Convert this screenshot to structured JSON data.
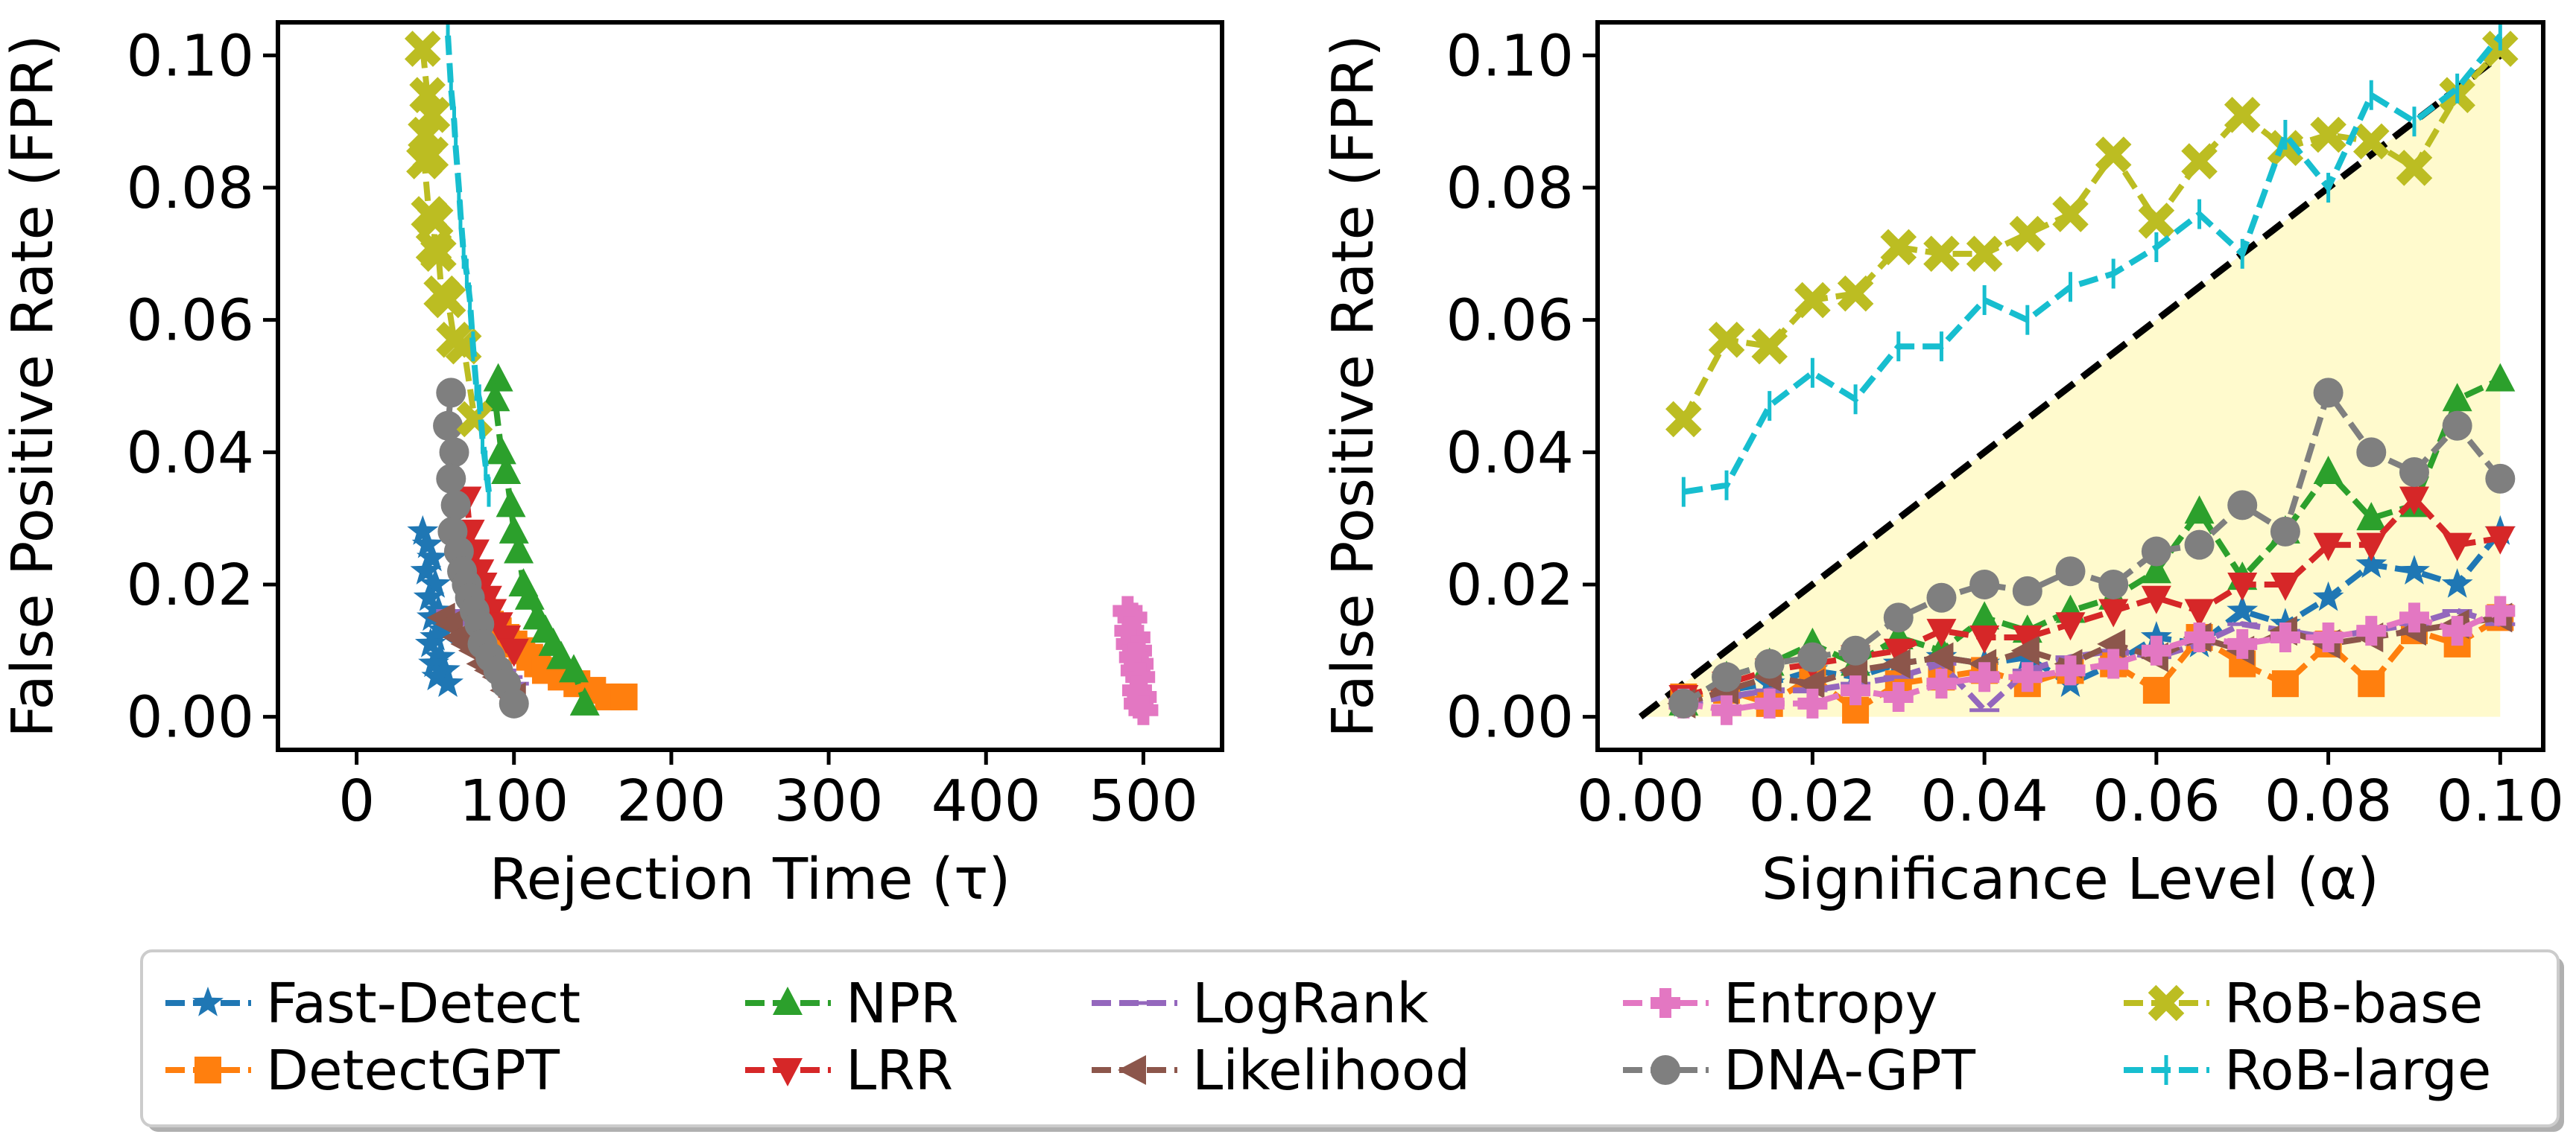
{
  "chart_data": [
    {
      "type": "line",
      "xlabel": "Rejection Time (τ)",
      "ylabel": "False Positive Rate (FPR)",
      "xlim": [
        -50,
        550
      ],
      "ylim": [
        -0.005,
        0.105
      ],
      "xticks": [
        0,
        100,
        200,
        300,
        400,
        500
      ],
      "yticks": [
        0.0,
        0.02,
        0.04,
        0.06,
        0.08,
        0.1
      ],
      "xtick_labels": [
        "0",
        "100",
        "200",
        "300",
        "400",
        "500"
      ],
      "ytick_labels": [
        "0.00",
        "0.02",
        "0.04",
        "0.06",
        "0.08",
        "0.10"
      ],
      "grid": false,
      "series": [
        {
          "name": "Fast-Detect",
          "x": [
            42,
            45,
            48,
            44,
            50,
            46,
            52,
            48,
            55,
            50,
            47,
            53,
            49,
            56,
            51,
            58
          ],
          "y": [
            0.028,
            0.026,
            0.024,
            0.022,
            0.02,
            0.018,
            0.016,
            0.015,
            0.013,
            0.012,
            0.011,
            0.009,
            0.008,
            0.007,
            0.006,
            0.005
          ]
        },
        {
          "name": "DetectGPT",
          "x": [
            80,
            85,
            90,
            95,
            100,
            105,
            110,
            115,
            120,
            130,
            140,
            150,
            160,
            170
          ],
          "y": [
            0.016,
            0.014,
            0.013,
            0.012,
            0.011,
            0.01,
            0.009,
            0.008,
            0.007,
            0.006,
            0.005,
            0.004,
            0.003,
            0.003
          ]
        },
        {
          "name": "NPR",
          "x": [
            90,
            88,
            92,
            95,
            98,
            100,
            103,
            106,
            110,
            115,
            120,
            125,
            130,
            138,
            145
          ],
          "y": [
            0.051,
            0.048,
            0.04,
            0.037,
            0.032,
            0.028,
            0.025,
            0.02,
            0.018,
            0.015,
            0.013,
            0.011,
            0.009,
            0.007,
            0.002
          ]
        },
        {
          "name": "LRR",
          "x": [
            70,
            72,
            75,
            78,
            80,
            83,
            86,
            90,
            95,
            100
          ],
          "y": [
            0.033,
            0.028,
            0.025,
            0.022,
            0.02,
            0.018,
            0.016,
            0.014,
            0.012,
            0.01
          ]
        },
        {
          "name": "LogRank",
          "x": [
            60,
            64,
            68,
            72,
            76,
            80,
            84,
            88,
            92,
            96,
            100
          ],
          "y": [
            0.016,
            0.015,
            0.014,
            0.013,
            0.012,
            0.01,
            0.009,
            0.008,
            0.007,
            0.006,
            0.005
          ]
        },
        {
          "name": "Likelihood",
          "x": [
            55,
            60,
            65,
            70,
            75,
            80,
            85,
            90,
            95,
            100
          ],
          "y": [
            0.015,
            0.014,
            0.012,
            0.011,
            0.01,
            0.008,
            0.007,
            0.006,
            0.004,
            0.003
          ]
        },
        {
          "name": "Entropy",
          "x": [
            490,
            493,
            491,
            495,
            492,
            496,
            494,
            497,
            495,
            498,
            496,
            499,
            497,
            500
          ],
          "y": [
            0.016,
            0.015,
            0.013,
            0.012,
            0.011,
            0.01,
            0.009,
            0.008,
            0.007,
            0.006,
            0.004,
            0.003,
            0.002,
            0.001
          ]
        },
        {
          "name": "DNA-GPT",
          "x": [
            60,
            58,
            62,
            60,
            63,
            61,
            65,
            67,
            70,
            72,
            75,
            78,
            80,
            85,
            90,
            95,
            100
          ],
          "y": [
            0.049,
            0.044,
            0.04,
            0.036,
            0.032,
            0.028,
            0.025,
            0.022,
            0.02,
            0.018,
            0.016,
            0.014,
            0.011,
            0.009,
            0.007,
            0.005,
            0.002
          ]
        },
        {
          "name": "RoB-base",
          "x": [
            42,
            45,
            48,
            44,
            47,
            43,
            46,
            50,
            49,
            52,
            54,
            58,
            62,
            68,
            75
          ],
          "y": [
            0.101,
            0.094,
            0.091,
            0.088,
            0.085,
            0.084,
            0.076,
            0.075,
            0.071,
            0.07,
            0.064,
            0.063,
            0.057,
            0.056,
            0.045
          ]
        },
        {
          "name": "RoB-large",
          "x": [
            58,
            60,
            62,
            63,
            65,
            66,
            68,
            70,
            72,
            74,
            76,
            78,
            80,
            82,
            84
          ],
          "y": [
            0.103,
            0.095,
            0.09,
            0.086,
            0.08,
            0.076,
            0.07,
            0.067,
            0.063,
            0.056,
            0.05,
            0.048,
            0.042,
            0.038,
            0.034
          ]
        }
      ]
    },
    {
      "type": "line",
      "xlabel": "Significance Level (α)",
      "ylabel": "False Positive Rate (FPR)",
      "xlim": [
        -0.005,
        0.105
      ],
      "ylim": [
        -0.005,
        0.105
      ],
      "xticks": [
        0.0,
        0.02,
        0.04,
        0.06,
        0.08,
        0.1
      ],
      "yticks": [
        0.0,
        0.02,
        0.04,
        0.06,
        0.08,
        0.1
      ],
      "xtick_labels": [
        "0.00",
        "0.02",
        "0.04",
        "0.06",
        "0.08",
        "0.10"
      ],
      "ytick_labels": [
        "0.00",
        "0.02",
        "0.04",
        "0.06",
        "0.08",
        "0.10"
      ],
      "grid": false,
      "reference_line": {
        "x": [
          0,
          0.1
        ],
        "y": [
          0,
          0.1
        ],
        "style": "dashed",
        "color": "#000000"
      },
      "shaded_region": {
        "color": "#fffacd",
        "x": [
          0,
          0.1,
          0.1
        ],
        "y": [
          0,
          0,
          0.1
        ]
      },
      "series": [
        {
          "name": "Fast-Detect",
          "x": [
            0.005,
            0.01,
            0.015,
            0.02,
            0.025,
            0.03,
            0.035,
            0.04,
            0.045,
            0.05,
            0.055,
            0.06,
            0.065,
            0.07,
            0.075,
            0.08,
            0.085,
            0.09,
            0.095,
            0.1
          ],
          "y": [
            0.002,
            0.004,
            0.005,
            0.007,
            0.006,
            0.008,
            0.009,
            0.008,
            0.009,
            0.005,
            0.008,
            0.012,
            0.011,
            0.016,
            0.014,
            0.018,
            0.023,
            0.022,
            0.02,
            0.028
          ]
        },
        {
          "name": "DetectGPT",
          "x": [
            0.005,
            0.01,
            0.015,
            0.02,
            0.025,
            0.03,
            0.035,
            0.04,
            0.045,
            0.05,
            0.055,
            0.06,
            0.065,
            0.07,
            0.075,
            0.08,
            0.085,
            0.09,
            0.095,
            0.1
          ],
          "y": [
            0.003,
            0.004,
            0.002,
            0.006,
            0.001,
            0.005,
            0.006,
            0.007,
            0.005,
            0.007,
            0.008,
            0.004,
            0.012,
            0.008,
            0.005,
            0.011,
            0.005,
            0.013,
            0.011,
            0.015
          ]
        },
        {
          "name": "NPR",
          "x": [
            0.005,
            0.01,
            0.015,
            0.02,
            0.025,
            0.03,
            0.035,
            0.04,
            0.045,
            0.05,
            0.055,
            0.06,
            0.065,
            0.07,
            0.075,
            0.08,
            0.085,
            0.09,
            0.095,
            0.1
          ],
          "y": [
            0.002,
            0.006,
            0.008,
            0.011,
            0.008,
            0.012,
            0.01,
            0.015,
            0.013,
            0.016,
            0.018,
            0.022,
            0.031,
            0.021,
            0.028,
            0.037,
            0.03,
            0.032,
            0.048,
            0.051
          ]
        },
        {
          "name": "LRR",
          "x": [
            0.005,
            0.01,
            0.015,
            0.02,
            0.025,
            0.03,
            0.035,
            0.04,
            0.045,
            0.05,
            0.055,
            0.06,
            0.065,
            0.07,
            0.075,
            0.08,
            0.085,
            0.09,
            0.095,
            0.1
          ],
          "y": [
            0.003,
            0.005,
            0.007,
            0.008,
            0.009,
            0.01,
            0.013,
            0.012,
            0.012,
            0.014,
            0.016,
            0.018,
            0.016,
            0.02,
            0.02,
            0.026,
            0.026,
            0.033,
            0.026,
            0.027
          ]
        },
        {
          "name": "LogRank",
          "x": [
            0.005,
            0.01,
            0.015,
            0.02,
            0.025,
            0.03,
            0.035,
            0.04,
            0.045,
            0.05,
            0.055,
            0.06,
            0.065,
            0.07,
            0.075,
            0.08,
            0.085,
            0.09,
            0.095,
            0.1
          ],
          "y": [
            0.002,
            0.003,
            0.004,
            0.004,
            0.005,
            0.006,
            0.008,
            0.001,
            0.007,
            0.009,
            0.01,
            0.009,
            0.011,
            0.014,
            0.013,
            0.012,
            0.013,
            0.014,
            0.016,
            0.014
          ]
        },
        {
          "name": "Likelihood",
          "x": [
            0.005,
            0.01,
            0.015,
            0.02,
            0.025,
            0.03,
            0.035,
            0.04,
            0.045,
            0.05,
            0.055,
            0.06,
            0.065,
            0.07,
            0.075,
            0.08,
            0.085,
            0.09,
            0.095,
            0.1
          ],
          "y": [
            0.002,
            0.004,
            0.006,
            0.005,
            0.007,
            0.008,
            0.009,
            0.008,
            0.01,
            0.008,
            0.011,
            0.009,
            0.012,
            0.01,
            0.013,
            0.011,
            0.012,
            0.013,
            0.014,
            0.015
          ]
        },
        {
          "name": "Entropy",
          "x": [
            0.005,
            0.01,
            0.015,
            0.02,
            0.025,
            0.03,
            0.035,
            0.04,
            0.045,
            0.05,
            0.055,
            0.06,
            0.065,
            0.07,
            0.075,
            0.08,
            0.085,
            0.09,
            0.095,
            0.1
          ],
          "y": [
            0.002,
            0.001,
            0.002,
            0.002,
            0.004,
            0.003,
            0.005,
            0.006,
            0.006,
            0.007,
            0.008,
            0.01,
            0.012,
            0.011,
            0.012,
            0.012,
            0.013,
            0.015,
            0.013,
            0.016
          ]
        },
        {
          "name": "DNA-GPT",
          "x": [
            0.005,
            0.01,
            0.015,
            0.02,
            0.025,
            0.03,
            0.035,
            0.04,
            0.045,
            0.05,
            0.055,
            0.06,
            0.065,
            0.07,
            0.075,
            0.08,
            0.085,
            0.09,
            0.095,
            0.1
          ],
          "y": [
            0.002,
            0.006,
            0.008,
            0.009,
            0.01,
            0.015,
            0.018,
            0.02,
            0.019,
            0.022,
            0.02,
            0.025,
            0.026,
            0.032,
            0.028,
            0.049,
            0.04,
            0.037,
            0.044,
            0.036
          ]
        },
        {
          "name": "RoB-base",
          "x": [
            0.005,
            0.01,
            0.015,
            0.02,
            0.025,
            0.03,
            0.035,
            0.04,
            0.045,
            0.05,
            0.055,
            0.06,
            0.065,
            0.07,
            0.075,
            0.08,
            0.085,
            0.09,
            0.095,
            0.1
          ],
          "y": [
            0.045,
            0.057,
            0.056,
            0.063,
            0.064,
            0.071,
            0.07,
            0.07,
            0.073,
            0.076,
            0.085,
            0.075,
            0.084,
            0.091,
            0.086,
            0.088,
            0.087,
            0.083,
            0.094,
            0.101
          ]
        },
        {
          "name": "RoB-large",
          "x": [
            0.005,
            0.01,
            0.015,
            0.02,
            0.025,
            0.03,
            0.035,
            0.04,
            0.045,
            0.05,
            0.055,
            0.06,
            0.065,
            0.07,
            0.075,
            0.08,
            0.085,
            0.09,
            0.095,
            0.1
          ],
          "y": [
            0.034,
            0.035,
            0.047,
            0.052,
            0.048,
            0.056,
            0.056,
            0.063,
            0.06,
            0.065,
            0.067,
            0.071,
            0.076,
            0.07,
            0.088,
            0.08,
            0.094,
            0.09,
            0.095,
            0.103
          ]
        }
      ]
    }
  ],
  "legend": {
    "placement": "bottom-center",
    "entries": [
      {
        "name": "Fast-Detect",
        "color": "#1f77b4",
        "marker": "star"
      },
      {
        "name": "DetectGPT",
        "color": "#ff7f0e",
        "marker": "square"
      },
      {
        "name": "NPR",
        "color": "#2ca02c",
        "marker": "triangle-up"
      },
      {
        "name": "LRR",
        "color": "#d62728",
        "marker": "triangle-down"
      },
      {
        "name": "LogRank",
        "color": "#9467bd",
        "marker": "hline"
      },
      {
        "name": "Likelihood",
        "color": "#8c564b",
        "marker": "triangle-left"
      },
      {
        "name": "Entropy",
        "color": "#e377c2",
        "marker": "plus"
      },
      {
        "name": "DNA-GPT",
        "color": "#7f7f7f",
        "marker": "circle"
      },
      {
        "name": "RoB-base",
        "color": "#bcbd22",
        "marker": "x"
      },
      {
        "name": "RoB-large",
        "color": "#17becf",
        "marker": "vline"
      }
    ]
  }
}
